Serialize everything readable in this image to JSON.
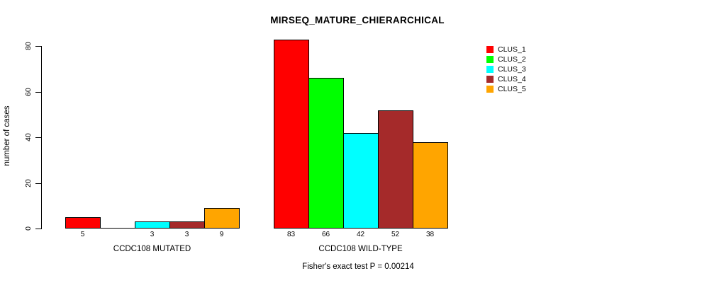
{
  "chart_data": {
    "type": "bar",
    "title": "MIRSEQ_MATURE_CHIERARCHICAL",
    "ylabel": "number of cases",
    "xlabel": "",
    "note": "Fisher's exact test P = 0.00214",
    "ylim": [
      0,
      80
    ],
    "yticks": [
      0,
      20,
      40,
      60,
      80
    ],
    "grid": false,
    "legend_position": "top-right",
    "bar_value_labels": true,
    "categories": [
      "CCDC108 MUTATED",
      "CCDC108 WILD-TYPE"
    ],
    "series": [
      {
        "name": "CLUS_1",
        "color": "#FF0000",
        "values": [
          5,
          83
        ]
      },
      {
        "name": "CLUS_2",
        "color": "#00FF00",
        "values": [
          0,
          66
        ]
      },
      {
        "name": "CLUS_3",
        "color": "#00FFFF",
        "values": [
          3,
          42
        ]
      },
      {
        "name": "CLUS_4",
        "color": "#A52A2A",
        "values": [
          3,
          52
        ]
      },
      {
        "name": "CLUS_5",
        "color": "#FFA500",
        "values": [
          9,
          38
        ]
      }
    ]
  }
}
